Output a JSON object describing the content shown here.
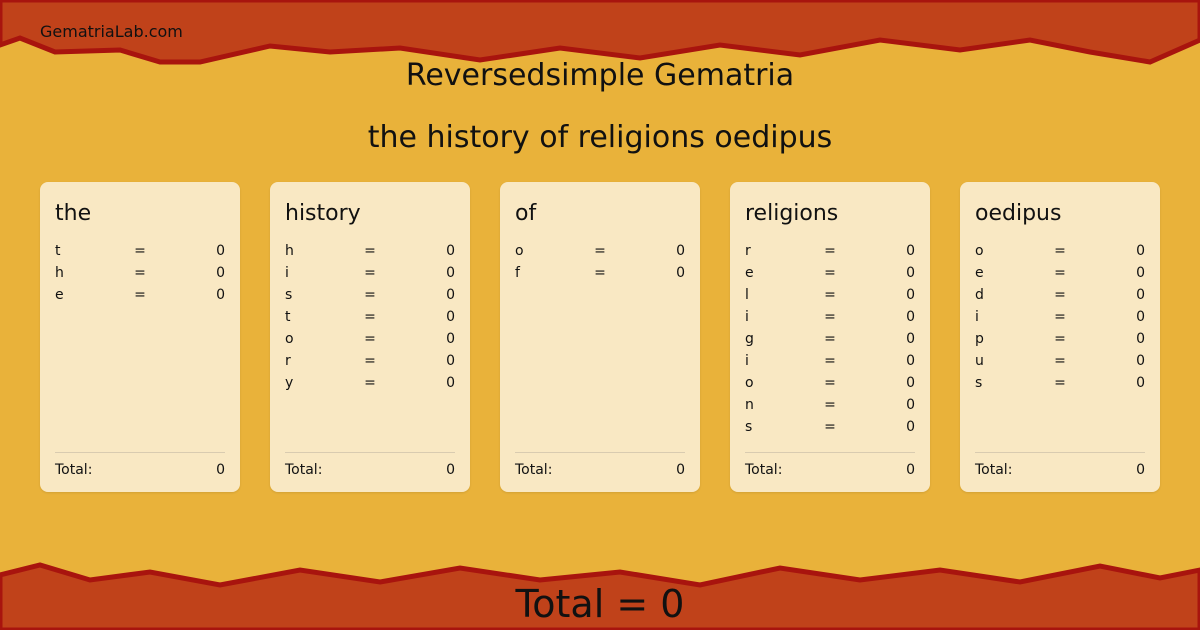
{
  "site": "GematriaLab.com",
  "title": "Reversedsimple Gematria",
  "phrase": "the history of religions oedipus",
  "colors": {
    "band": "#c0421a",
    "edge": "#a8140e",
    "paper": "#e9b23a",
    "card": "#faecd0"
  },
  "cards": [
    {
      "word": "the",
      "letters": [
        [
          "t",
          "=",
          "0"
        ],
        [
          "h",
          "=",
          "0"
        ],
        [
          "e",
          "=",
          "0"
        ]
      ],
      "total_label": "Total:",
      "total": "0"
    },
    {
      "word": "history",
      "letters": [
        [
          "h",
          "=",
          "0"
        ],
        [
          "i",
          "=",
          "0"
        ],
        [
          "s",
          "=",
          "0"
        ],
        [
          "t",
          "=",
          "0"
        ],
        [
          "o",
          "=",
          "0"
        ],
        [
          "r",
          "=",
          "0"
        ],
        [
          "y",
          "=",
          "0"
        ]
      ],
      "total_label": "Total:",
      "total": "0"
    },
    {
      "word": "of",
      "letters": [
        [
          "o",
          "=",
          "0"
        ],
        [
          "f",
          "=",
          "0"
        ]
      ],
      "total_label": "Total:",
      "total": "0"
    },
    {
      "word": "religions",
      "letters": [
        [
          "r",
          "=",
          "0"
        ],
        [
          "e",
          "=",
          "0"
        ],
        [
          "l",
          "=",
          "0"
        ],
        [
          "i",
          "=",
          "0"
        ],
        [
          "g",
          "=",
          "0"
        ],
        [
          "i",
          "=",
          "0"
        ],
        [
          "o",
          "=",
          "0"
        ],
        [
          "n",
          "=",
          "0"
        ],
        [
          "s",
          "=",
          "0"
        ]
      ],
      "total_label": "Total:",
      "total": "0"
    },
    {
      "word": "oedipus",
      "letters": [
        [
          "o",
          "=",
          "0"
        ],
        [
          "e",
          "=",
          "0"
        ],
        [
          "d",
          "=",
          "0"
        ],
        [
          "i",
          "=",
          "0"
        ],
        [
          "p",
          "=",
          "0"
        ],
        [
          "u",
          "=",
          "0"
        ],
        [
          "s",
          "=",
          "0"
        ]
      ],
      "total_label": "Total:",
      "total": "0"
    }
  ],
  "grand_total": "Total = 0"
}
